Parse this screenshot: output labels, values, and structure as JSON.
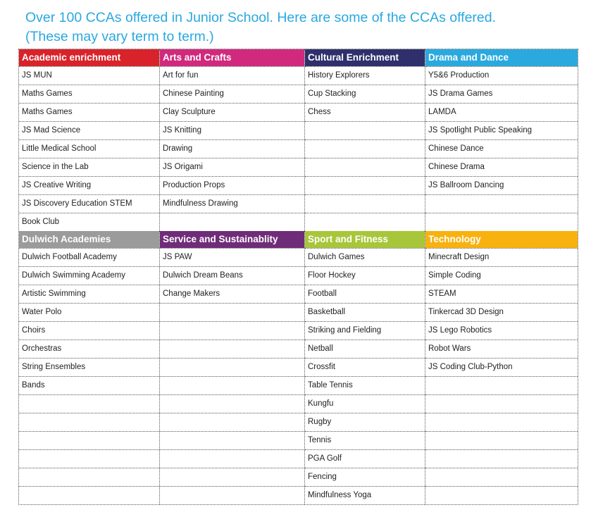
{
  "title": {
    "line1": "Over 100 CCAs offered in Junior School. Here are some of the CCAs offered.",
    "line2": "(These may vary term to term.)"
  },
  "colors": {
    "title": "#29a8e0",
    "academic_enrichment": "#d8232a",
    "arts_and_crafts": "#d0297d",
    "cultural_enrichment": "#2e2f6b",
    "drama_and_dance": "#2aa9de",
    "dulwich_academies": "#9b9b9b",
    "service_and_sustainability": "#6f2c78",
    "sport_and_fitness": "#a8c63a",
    "technology": "#f7b20f"
  },
  "sections": [
    {
      "rows": 9,
      "columns": [
        {
          "header": "Academic enrichment",
          "color": "#d8232a",
          "items": [
            "JS MUN",
            "Maths Games",
            "Maths Games",
            "JS Mad Science",
            "Little Medical School",
            "Science in the Lab",
            "JS Creative Writing",
            "JS Discovery Education STEM",
            "Book Club"
          ]
        },
        {
          "header": "Arts and Crafts",
          "color": "#d0297d",
          "items": [
            "Art for fun",
            "Chinese Painting",
            "Clay Sculpture",
            "JS Knitting",
            "Drawing",
            "JS Origami",
            "Production Props",
            "Mindfulness Drawing"
          ]
        },
        {
          "header": "Cultural Enrichment",
          "color": "#2e2f6b",
          "items": [
            "History Explorers",
            "Cup Stacking",
            "Chess"
          ]
        },
        {
          "header": "Drama and Dance",
          "color": "#2aa9de",
          "items": [
            "Y5&6 Production",
            "JS Drama Games",
            "LAMDA",
            "JS Spotlight Public Speaking",
            "Chinese Dance",
            "Chinese Drama",
            "JS Ballroom Dancing"
          ]
        }
      ]
    },
    {
      "rows": 14,
      "columns": [
        {
          "header": "Dulwich Academies",
          "color": "#9b9b9b",
          "items": [
            "Dulwich Football Academy",
            "Dulwich Swimming Academy",
            "Artistic Swimming",
            "Water Polo",
            "Choirs",
            "Orchestras",
            "String Ensembles",
            "Bands"
          ]
        },
        {
          "header": "Service and Sustainablity",
          "color": "#6f2c78",
          "items": [
            "JS PAW",
            "Dulwich Dream Beans",
            "Change Makers"
          ]
        },
        {
          "header": "Sport and Fitness",
          "color": "#a8c63a",
          "items": [
            "Dulwich Games",
            "Floor Hockey",
            "Football",
            "Basketball",
            "Striking and Fielding",
            "Netball",
            "Crossfit",
            "Table Tennis",
            "Kungfu",
            "Rugby",
            "Tennis",
            "PGA Golf",
            "Fencing",
            "Mindfulness Yoga"
          ]
        },
        {
          "header": "Technology",
          "color": "#f7b20f",
          "items": [
            "Minecraft Design",
            "Simple Coding",
            "STEAM",
            "Tinkercad 3D Design",
            "JS Lego Robotics",
            "Robot Wars",
            "JS Coding Club-Python"
          ]
        }
      ]
    }
  ]
}
